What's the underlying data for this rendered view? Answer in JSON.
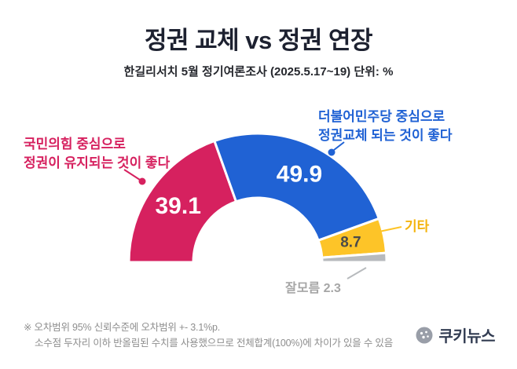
{
  "header": {
    "title": "정권 교체 vs 정권 연장",
    "subtitle": "한길리서치 5월 정기여론조사 (2025.5.17~19) 단위: %"
  },
  "chart_data": {
    "type": "pie",
    "subtype": "half_donut",
    "title": "정권 교체 vs 정권 연장",
    "unit": "%",
    "total": 100,
    "segments": [
      {
        "label": "국민의힘 중심으로 정권이 유지되는 것이 좋다",
        "value": 39.1,
        "color": "#d6215f"
      },
      {
        "label": "더불어민주당 중심으로 정권교체 되는 것이 좋다",
        "value": 49.9,
        "color": "#2062d4"
      },
      {
        "label": "기타",
        "value": 8.7,
        "color": "#fdc428"
      },
      {
        "label": "잘모름",
        "value": 2.3,
        "color": "#b7babd"
      }
    ]
  },
  "callout_labels": {
    "left": {
      "line1": "국민의힘 중심으로",
      "line2": "정권이 유지되는 것이 좋다",
      "color": "#d6215f"
    },
    "right": {
      "line1": "더불어민주당 중심으로",
      "line2": "정권교체 되는 것이 좋다",
      "color": "#2062d4"
    },
    "etc": {
      "text": "기타",
      "color": "#f4b40d"
    },
    "unknown": {
      "text": "잘모름 2.3",
      "color": "#a6a6a6"
    }
  },
  "footnotes": {
    "line1": "※ 오차범위 95% 신뢰수준에 오차범위 +- 3.1%p.",
    "line2": "소수점 두자리 이하 반올림된 수치를 사용했으므로 전체합계(100%)에 차이가 있을 수 있음"
  },
  "branding": {
    "logo_text": "쿠키뉴스"
  }
}
